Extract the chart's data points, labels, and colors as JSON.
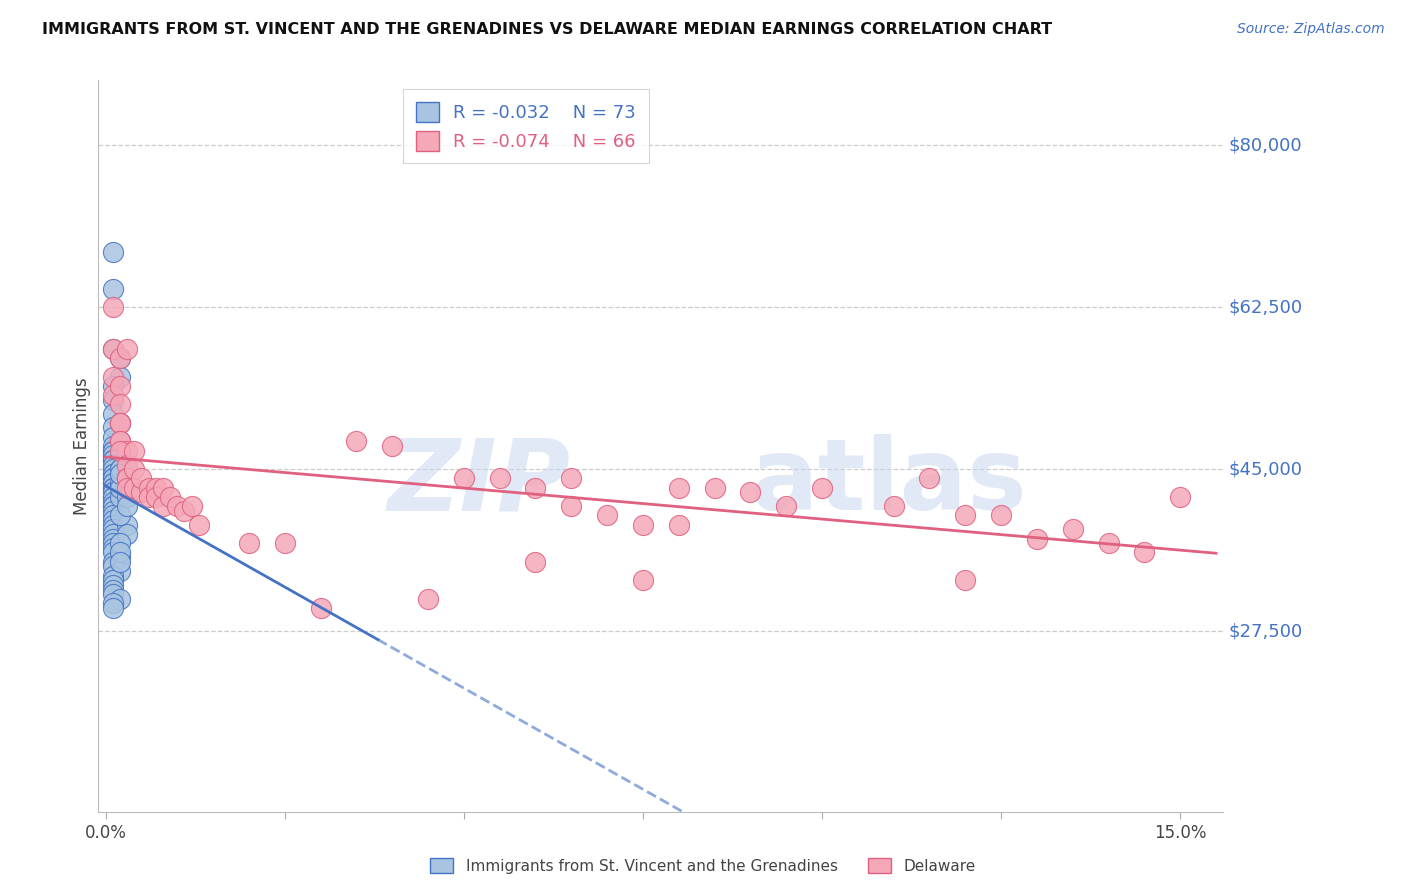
{
  "title": "IMMIGRANTS FROM ST. VINCENT AND THE GRENADINES VS DELAWARE MEDIAN EARNINGS CORRELATION CHART",
  "source": "Source: ZipAtlas.com",
  "ylabel": "Median Earnings",
  "blue_R": "-0.032",
  "blue_N": "73",
  "pink_R": "-0.074",
  "pink_N": "66",
  "blue_fill": "#a8c4e0",
  "pink_fill": "#f4a8b8",
  "blue_edge": "#4472c4",
  "pink_edge": "#e06080",
  "legend_label_blue": "Immigrants from St. Vincent and the Grenadines",
  "legend_label_pink": "Delaware",
  "xmin": 0.0,
  "xmax": 0.155,
  "ymin": 8000,
  "ymax": 87000,
  "ytick_vals": [
    27500,
    45000,
    62500,
    80000
  ],
  "ytick_labels": [
    "$27,500",
    "$45,000",
    "$62,500",
    "$80,000"
  ],
  "blue_x": [
    0.001,
    0.001,
    0.002,
    0.001,
    0.002,
    0.001,
    0.001,
    0.001,
    0.002,
    0.001,
    0.001,
    0.002,
    0.001,
    0.001,
    0.001,
    0.002,
    0.001,
    0.001,
    0.001,
    0.001,
    0.001,
    0.002,
    0.001,
    0.001,
    0.001,
    0.001,
    0.001,
    0.001,
    0.001,
    0.001,
    0.001,
    0.001,
    0.001,
    0.001,
    0.001,
    0.001,
    0.001,
    0.001,
    0.001,
    0.001,
    0.002,
    0.002,
    0.001,
    0.001,
    0.001,
    0.001,
    0.001,
    0.001,
    0.002,
    0.001,
    0.001,
    0.002,
    0.001,
    0.001,
    0.001,
    0.001,
    0.001,
    0.002,
    0.001,
    0.001,
    0.003,
    0.002,
    0.002,
    0.002,
    0.003,
    0.003,
    0.003,
    0.002,
    0.003,
    0.002,
    0.002,
    0.002,
    0.003
  ],
  "blue_y": [
    64500,
    68500,
    57000,
    58000,
    55000,
    54000,
    52500,
    51000,
    50000,
    49500,
    48500,
    48000,
    47500,
    47000,
    47000,
    47000,
    46500,
    46000,
    46000,
    45500,
    45000,
    45000,
    44500,
    44500,
    44000,
    44000,
    43500,
    43500,
    43000,
    43000,
    42500,
    42000,
    42000,
    41500,
    41000,
    41000,
    40500,
    40000,
    39500,
    39000,
    43500,
    42000,
    38500,
    38000,
    37500,
    37000,
    36500,
    36000,
    35500,
    35000,
    34500,
    34000,
    33500,
    33000,
    32500,
    32000,
    31500,
    31000,
    30500,
    30000,
    44000,
    43000,
    45000,
    44500,
    44000,
    39000,
    38000,
    40000,
    42000,
    37000,
    36000,
    35000,
    41000
  ],
  "pink_x": [
    0.001,
    0.001,
    0.001,
    0.002,
    0.001,
    0.002,
    0.002,
    0.002,
    0.002,
    0.002,
    0.002,
    0.003,
    0.003,
    0.002,
    0.003,
    0.003,
    0.003,
    0.004,
    0.003,
    0.004,
    0.004,
    0.004,
    0.005,
    0.005,
    0.006,
    0.006,
    0.007,
    0.007,
    0.008,
    0.008,
    0.009,
    0.01,
    0.011,
    0.012,
    0.013,
    0.02,
    0.025,
    0.03,
    0.035,
    0.04,
    0.045,
    0.05,
    0.055,
    0.06,
    0.06,
    0.065,
    0.065,
    0.07,
    0.075,
    0.075,
    0.08,
    0.08,
    0.085,
    0.09,
    0.095,
    0.1,
    0.11,
    0.115,
    0.12,
    0.125,
    0.13,
    0.135,
    0.14,
    0.145,
    0.15,
    0.12
  ],
  "pink_y": [
    62500,
    55000,
    58000,
    57000,
    53000,
    54000,
    52000,
    50000,
    50000,
    48000,
    48000,
    58000,
    47000,
    47000,
    45500,
    44000,
    44000,
    43000,
    43000,
    47000,
    45000,
    43000,
    42500,
    44000,
    43000,
    42000,
    43000,
    42000,
    41000,
    43000,
    42000,
    41000,
    40500,
    41000,
    39000,
    37000,
    37000,
    30000,
    48000,
    47500,
    31000,
    44000,
    44000,
    43000,
    35000,
    44000,
    41000,
    40000,
    39000,
    33000,
    43000,
    39000,
    43000,
    42500,
    41000,
    43000,
    41000,
    44000,
    40000,
    40000,
    37500,
    38500,
    37000,
    36000,
    42000,
    33000
  ]
}
